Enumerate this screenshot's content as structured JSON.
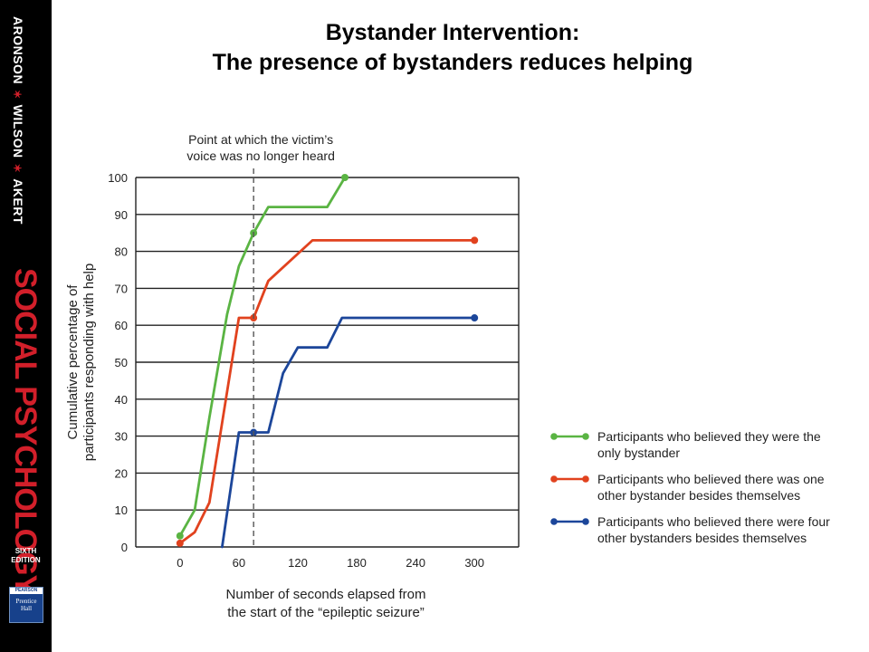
{
  "sidebar": {
    "authors": [
      "ARONSON",
      "WILSON",
      "AKERT"
    ],
    "brand": "SOCIAL PSYCHOLOGY",
    "edition": [
      "SIXTH",
      "EDITION"
    ],
    "publisher": [
      "PEARSON",
      "Prentice",
      "Hall"
    ]
  },
  "slide": {
    "title_line1": "Bystander Intervention:",
    "title_line2": "The presence of bystanders reduces helping"
  },
  "colors": {
    "green": "#5ab443",
    "red": "#e1421e",
    "blue": "#1c469a",
    "grid": "#222222",
    "sidebar_bg": "#000000",
    "brand_red": "#d21f2a"
  },
  "chart_data": {
    "type": "line",
    "ylabel": [
      "Cumulative percentage of",
      "participants responding with help"
    ],
    "xlabel": [
      "Number of seconds elapsed from",
      "the start of the “epileptic seizure”"
    ],
    "xlim": [
      -45,
      345
    ],
    "ylim": [
      0,
      100
    ],
    "x_ticks": [
      0,
      60,
      120,
      180,
      240,
      300
    ],
    "y_ticks": [
      0,
      10,
      20,
      30,
      40,
      50,
      60,
      70,
      80,
      90,
      100
    ],
    "grid": "horizontal",
    "annotation": {
      "text": [
        "Point at which the victim’s",
        "voice was no longer heard"
      ],
      "x": 75
    },
    "legend_position": "right",
    "series": [
      {
        "name": "Participants who believed they were the only bystander",
        "legend_lines": [
          "Participants who believed they were the",
          "only bystander"
        ],
        "color": "#5ab443",
        "points": [
          [
            0,
            3
          ],
          [
            15,
            10
          ],
          [
            30,
            35
          ],
          [
            48,
            63
          ],
          [
            60,
            76
          ],
          [
            75,
            85
          ],
          [
            90,
            92
          ],
          [
            150,
            92
          ],
          [
            168,
            100
          ]
        ],
        "markers": [
          [
            0,
            3
          ],
          [
            75,
            85
          ],
          [
            168,
            100
          ]
        ]
      },
      {
        "name": "Participants who believed there was one other bystander besides themselves",
        "legend_lines": [
          "Participants who believed there was one",
          "other bystander besides themselves"
        ],
        "color": "#e1421e",
        "points": [
          [
            0,
            1
          ],
          [
            15,
            4
          ],
          [
            30,
            12
          ],
          [
            60,
            62
          ],
          [
            75,
            62
          ],
          [
            90,
            72
          ],
          [
            135,
            83
          ],
          [
            300,
            83
          ]
        ],
        "markers": [
          [
            0,
            1
          ],
          [
            75,
            62
          ],
          [
            300,
            83
          ]
        ]
      },
      {
        "name": "Participants who believed there were four other bystanders besides themselves",
        "legend_lines": [
          "Participants who believed there were four",
          "other bystanders besides themselves"
        ],
        "color": "#1c469a",
        "points": [
          [
            43,
            0
          ],
          [
            60,
            31
          ],
          [
            75,
            31
          ],
          [
            90,
            31
          ],
          [
            105,
            47
          ],
          [
            120,
            54
          ],
          [
            150,
            54
          ],
          [
            165,
            62
          ],
          [
            300,
            62
          ]
        ],
        "markers": [
          [
            75,
            31
          ],
          [
            300,
            62
          ]
        ]
      }
    ]
  }
}
